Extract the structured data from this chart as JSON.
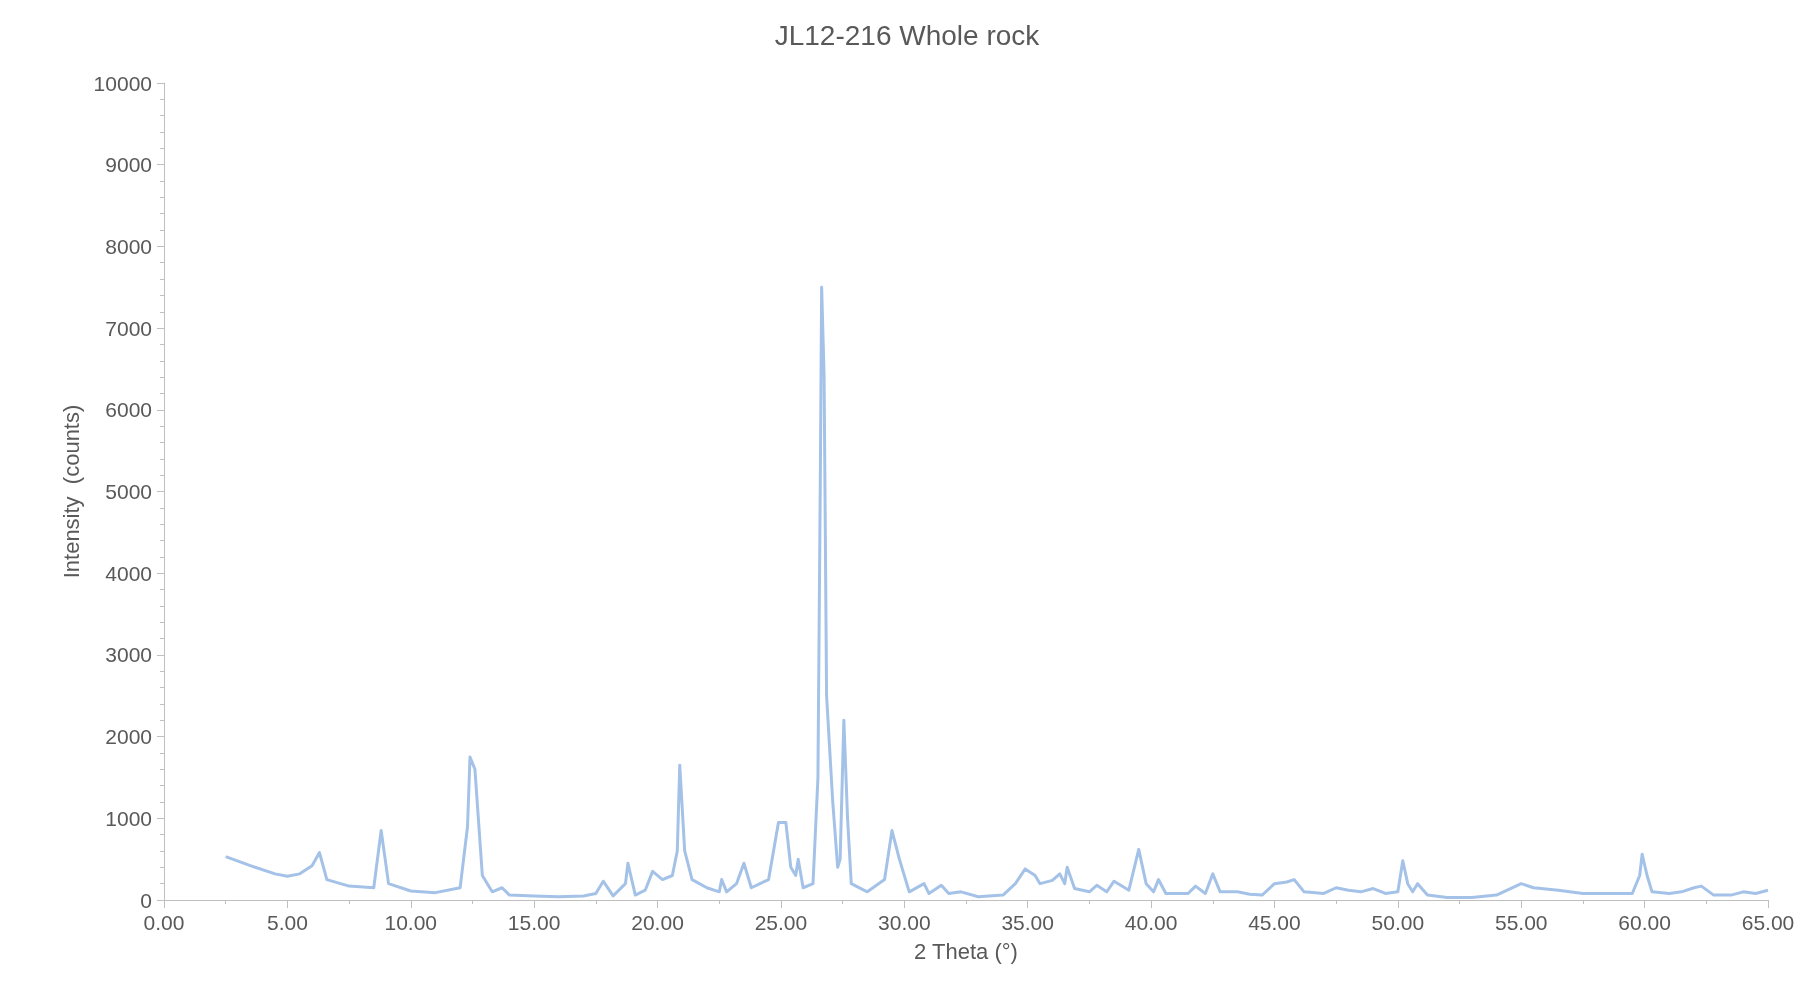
{
  "chart_data": {
    "type": "line",
    "title": "JL12-216 Whole rock",
    "xlabel": "2 Theta (°)",
    "ylabel": "Intensity  (counts)",
    "xlim": [
      0,
      65
    ],
    "ylim": [
      0,
      10000
    ],
    "xticks": [
      {
        "value": 0,
        "label": "0.00"
      },
      {
        "value": 5,
        "label": "5.00"
      },
      {
        "value": 10,
        "label": "10.00"
      },
      {
        "value": 15,
        "label": "15.00"
      },
      {
        "value": 20,
        "label": "20.00"
      },
      {
        "value": 25,
        "label": "25.00"
      },
      {
        "value": 30,
        "label": "30.00"
      },
      {
        "value": 35,
        "label": "35.00"
      },
      {
        "value": 40,
        "label": "40.00"
      },
      {
        "value": 45,
        "label": "45.00"
      },
      {
        "value": 50,
        "label": "50.00"
      },
      {
        "value": 55,
        "label": "55.00"
      },
      {
        "value": 60,
        "label": "60.00"
      },
      {
        "value": 65,
        "label": "65.00"
      }
    ],
    "yticks": [
      0,
      1000,
      2000,
      3000,
      4000,
      5000,
      6000,
      7000,
      8000,
      9000,
      10000
    ],
    "grid": false,
    "marker": "none",
    "line_style": "solid",
    "series": [
      {
        "color": "#a4c2e8",
        "x": [
          2.5,
          3.5,
          4.5,
          5.0,
          5.5,
          6.0,
          6.3,
          6.6,
          7.5,
          8.5,
          8.8,
          9.1,
          10,
          11,
          12,
          12.3,
          12.4,
          12.6,
          12.9,
          13.3,
          13.7,
          14,
          15,
          16,
          17,
          17.5,
          17.8,
          18.2,
          18.7,
          18.8,
          19.1,
          19.5,
          19.8,
          20.2,
          20.6,
          20.8,
          20.9,
          21.1,
          21.4,
          22,
          22.5,
          22.6,
          22.8,
          23.2,
          23.5,
          23.8,
          24.5,
          24.9,
          25.2,
          25.4,
          25.6,
          25.7,
          25.9,
          26.3,
          26.5,
          26.6,
          26.65,
          26.75,
          26.85,
          27.1,
          27.3,
          27.4,
          27.55,
          27.7,
          27.85,
          28.5,
          29.2,
          29.5,
          29.8,
          30.2,
          30.8,
          31.0,
          31.5,
          31.8,
          32.3,
          33,
          34,
          34.5,
          34.9,
          35.3,
          35.5,
          36.0,
          36.3,
          36.5,
          36.6,
          36.9,
          37.5,
          37.8,
          38.2,
          38.5,
          39.1,
          39.5,
          39.8,
          40.1,
          40.3,
          40.6,
          41.5,
          41.8,
          42.2,
          42.5,
          42.8,
          43.5,
          44,
          44.5,
          45,
          45.5,
          45.8,
          46.2,
          47,
          47.5,
          48,
          48.5,
          49,
          49.5,
          50,
          50.2,
          50.4,
          50.6,
          50.8,
          51.2,
          52,
          53,
          54,
          55,
          55.5,
          56.5,
          57.5,
          58.5,
          59.5,
          59.8,
          59.9,
          60.1,
          60.3,
          61,
          61.5,
          62,
          62.3,
          62.8,
          63.5,
          64,
          64.5,
          65
        ],
        "values": [
          530,
          420,
          320,
          290,
          320,
          420,
          580,
          250,
          170,
          150,
          850,
          200,
          110,
          90,
          150,
          900,
          1750,
          1600,
          300,
          100,
          150,
          60,
          50,
          40,
          50,
          80,
          230,
          50,
          200,
          450,
          60,
          120,
          350,
          250,
          300,
          600,
          1650,
          600,
          250,
          150,
          100,
          250,
          100,
          200,
          450,
          150,
          250,
          950,
          950,
          400,
          300,
          500,
          150,
          200,
          1500,
          5300,
          7500,
          6400,
          2500,
          1200,
          400,
          500,
          2200,
          1000,
          200,
          100,
          250,
          850,
          500,
          100,
          200,
          80,
          180,
          80,
          100,
          40,
          60,
          200,
          380,
          300,
          200,
          240,
          320,
          200,
          400,
          140,
          100,
          180,
          100,
          230,
          120,
          620,
          200,
          100,
          250,
          80,
          80,
          170,
          80,
          320,
          100,
          100,
          70,
          60,
          200,
          220,
          250,
          100,
          80,
          150,
          120,
          100,
          140,
          80,
          100,
          480,
          200,
          100,
          200,
          60,
          30,
          30,
          60,
          200,
          150,
          120,
          80,
          80,
          80,
          300,
          560,
          300,
          100,
          80,
          100,
          150,
          170,
          60,
          60,
          100,
          80,
          120
        ]
      }
    ]
  }
}
